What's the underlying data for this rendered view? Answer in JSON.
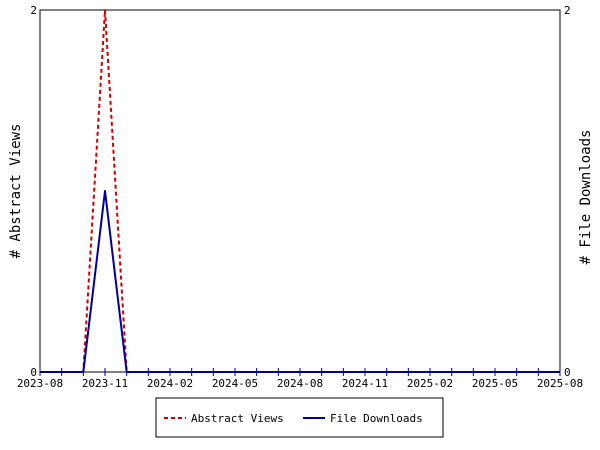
{
  "chart_data": {
    "type": "line",
    "x": [
      "2023-08",
      "2023-09",
      "2023-10",
      "2023-11",
      "2023-12",
      "2024-01",
      "2024-02",
      "2024-03",
      "2024-04",
      "2024-05",
      "2024-06",
      "2024-07",
      "2024-08",
      "2024-09",
      "2024-10",
      "2024-11",
      "2024-12",
      "2025-01",
      "2025-02",
      "2025-03",
      "2025-04",
      "2025-05",
      "2025-06",
      "2025-07",
      "2025-08"
    ],
    "x_ticks": [
      "2023-08",
      "2023-11",
      "2024-02",
      "2024-05",
      "2024-08",
      "2024-11",
      "2025-02",
      "2025-05",
      "2025-08"
    ],
    "series": [
      {
        "name": "Abstract Views",
        "axis": "left",
        "color": "#cc0000",
        "style": "dashed",
        "values": [
          0,
          0,
          0,
          2,
          0,
          0,
          0,
          0,
          0,
          0,
          0,
          0,
          0,
          0,
          0,
          0,
          0,
          0,
          0,
          0,
          0,
          0,
          0,
          0,
          0
        ]
      },
      {
        "name": "File Downloads",
        "axis": "right",
        "color": "#000099",
        "style": "solid",
        "values": [
          0,
          0,
          0,
          1,
          0,
          0,
          0,
          0,
          0,
          0,
          0,
          0,
          0,
          0,
          0,
          0,
          0,
          0,
          0,
          0,
          0,
          0,
          0,
          0,
          0
        ]
      }
    ],
    "ylabel_left": "# Abstract Views",
    "ylabel_right": "# File Downloads",
    "ylim_left": [
      0,
      2
    ],
    "ylim_right": [
      0,
      2
    ],
    "y_ticks_left": [
      "0",
      "2"
    ],
    "y_ticks_right": [
      "0",
      "2"
    ],
    "grid": false,
    "legend_position": "bottom"
  }
}
